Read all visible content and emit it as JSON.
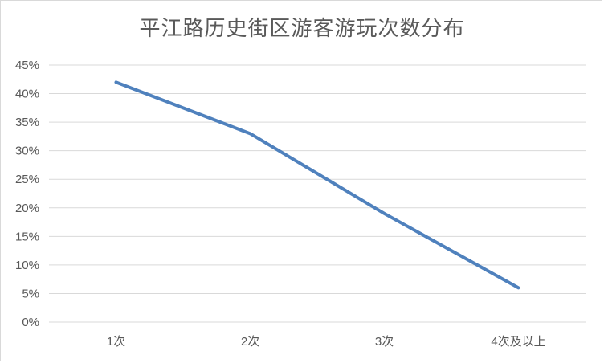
{
  "chart_data": {
    "type": "line",
    "title": "平江路历史街区游客游玩次数分布",
    "categories": [
      "1次",
      "2次",
      "3次",
      "4次及以上"
    ],
    "series": [
      {
        "values": [
          42,
          33,
          19,
          6
        ]
      }
    ],
    "y_tick_labels": [
      "0%",
      "5%",
      "10%",
      "15%",
      "20%",
      "25%",
      "30%",
      "35%",
      "40%",
      "45%"
    ],
    "ylim": [
      0,
      45
    ],
    "y_unit": "%",
    "grid": true,
    "legend": "none",
    "line_color": "#4F81BD",
    "grid_color": "#D9D9D9"
  }
}
